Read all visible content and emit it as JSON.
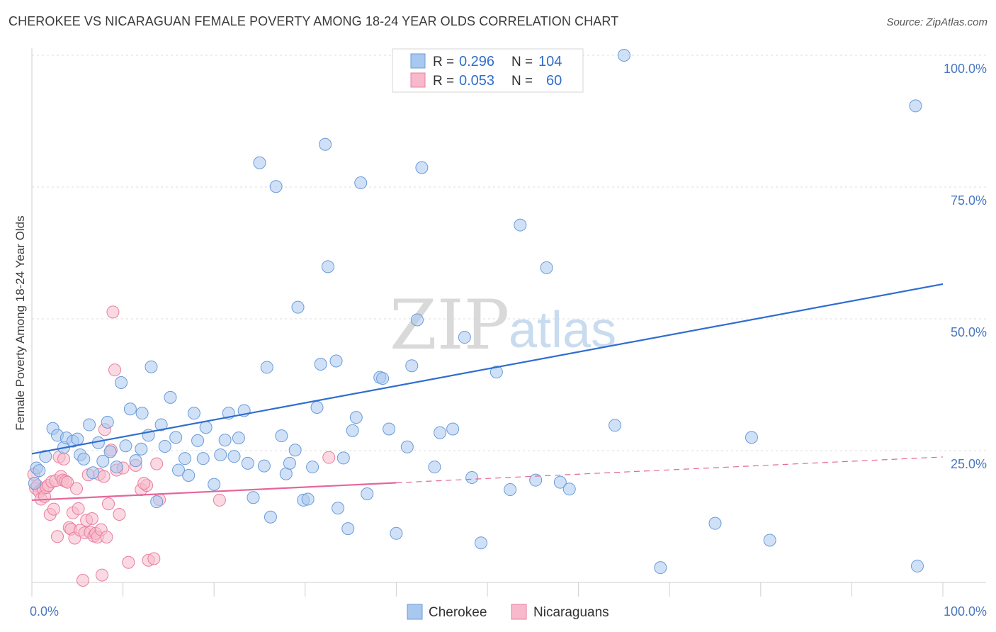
{
  "header": {
    "title": "CHEROKEE VS NICARAGUAN FEMALE POVERTY AMONG 18-24 YEAR OLDS CORRELATION CHART",
    "source": "Source: ZipAtlas.com"
  },
  "watermark": {
    "zip": "ZIP",
    "atlas": "atlas"
  },
  "colors": {
    "cherokee_fill": "#a9c8f0",
    "cherokee_stroke": "#6a9bd8",
    "cherokee_line": "#2f6dd0",
    "nicaraguan_fill": "#f7b9cb",
    "nicaraguan_stroke": "#e87fa0",
    "nicaraguan_line": "#e5659a",
    "tick_text": "#4a78c2"
  },
  "stats": {
    "cherokee": {
      "r_label": "R =",
      "r_value": "0.296",
      "n_label": "N =",
      "n_value": "104"
    },
    "nicaraguan": {
      "r_label": "R =",
      "r_value": "0.053",
      "n_label": "N =",
      "n_value": "60"
    }
  },
  "legend": {
    "items": [
      "Cherokee",
      "Nicaraguans"
    ]
  },
  "chart_data": {
    "type": "scatter",
    "title": "CHEROKEE VS NICARAGUAN FEMALE POVERTY AMONG 18-24 YEAR OLDS CORRELATION CHART",
    "xlabel": "",
    "ylabel": "Female Poverty Among 18-24 Year Olds",
    "xlim": [
      0,
      100
    ],
    "ylim": [
      0,
      100
    ],
    "x_tick_labels": [
      "0.0%",
      "100.0%"
    ],
    "y_tick_values": [
      25,
      50,
      75,
      100
    ],
    "y_tick_labels": [
      "25.0%",
      "50.0%",
      "75.0%",
      "100.0%"
    ],
    "grid": true,
    "legend_position": "bottom-center",
    "series": [
      {
        "name": "Cherokee",
        "r": 0.296,
        "n": 104,
        "trend": {
          "x": [
            0,
            100
          ],
          "y": [
            24.4,
            56.6
          ],
          "style": "solid"
        },
        "points": [
          [
            0.5,
            21.7
          ],
          [
            0.8,
            21.2
          ],
          [
            1.5,
            23.9
          ],
          [
            2.3,
            29.2
          ],
          [
            2.8,
            27.9
          ],
          [
            3.5,
            25.6
          ],
          [
            3.8,
            27.4
          ],
          [
            4.5,
            26.8
          ],
          [
            5.0,
            27.2
          ],
          [
            5.3,
            24.2
          ],
          [
            5.7,
            23.4
          ],
          [
            6.3,
            29.9
          ],
          [
            6.7,
            20.8
          ],
          [
            7.3,
            26.5
          ],
          [
            7.8,
            23.0
          ],
          [
            8.3,
            30.4
          ],
          [
            8.6,
            24.8
          ],
          [
            9.3,
            21.9
          ],
          [
            9.8,
            37.9
          ],
          [
            10.3,
            25.9
          ],
          [
            10.8,
            32.9
          ],
          [
            11.4,
            23.1
          ],
          [
            12.0,
            25.3
          ],
          [
            12.1,
            32.1
          ],
          [
            12.8,
            27.9
          ],
          [
            13.1,
            40.9
          ],
          [
            13.7,
            15.3
          ],
          [
            14.2,
            29.9
          ],
          [
            14.6,
            25.8
          ],
          [
            15.2,
            35.1
          ],
          [
            15.8,
            27.5
          ],
          [
            16.1,
            21.3
          ],
          [
            16.8,
            23.5
          ],
          [
            17.2,
            20.3
          ],
          [
            17.8,
            32.1
          ],
          [
            18.2,
            26.9
          ],
          [
            18.8,
            23.5
          ],
          [
            19.1,
            29.4
          ],
          [
            20.0,
            18.6
          ],
          [
            20.7,
            24.2
          ],
          [
            21.2,
            27.0
          ],
          [
            21.6,
            32.1
          ],
          [
            22.2,
            23.9
          ],
          [
            22.7,
            27.4
          ],
          [
            23.3,
            32.6
          ],
          [
            23.7,
            22.6
          ],
          [
            24.3,
            16.1
          ],
          [
            25.0,
            79.6
          ],
          [
            25.5,
            22.1
          ],
          [
            25.8,
            40.8
          ],
          [
            26.2,
            12.4
          ],
          [
            26.8,
            75.1
          ],
          [
            27.4,
            27.8
          ],
          [
            27.9,
            20.6
          ],
          [
            28.3,
            22.6
          ],
          [
            28.9,
            25.1
          ],
          [
            29.2,
            52.2
          ],
          [
            29.8,
            15.6
          ],
          [
            30.3,
            15.8
          ],
          [
            30.8,
            21.9
          ],
          [
            31.3,
            33.2
          ],
          [
            31.7,
            41.4
          ],
          [
            32.2,
            83.1
          ],
          [
            32.5,
            59.9
          ],
          [
            33.4,
            42.0
          ],
          [
            33.6,
            14.1
          ],
          [
            34.2,
            23.6
          ],
          [
            34.7,
            10.2
          ],
          [
            35.2,
            28.8
          ],
          [
            35.6,
            31.3
          ],
          [
            36.1,
            75.8
          ],
          [
            36.8,
            16.8
          ],
          [
            38.2,
            38.9
          ],
          [
            38.5,
            38.7
          ],
          [
            39.2,
            29.1
          ],
          [
            40.0,
            9.3
          ],
          [
            41.2,
            25.7
          ],
          [
            41.7,
            41.1
          ],
          [
            42.3,
            49.8
          ],
          [
            42.8,
            78.7
          ],
          [
            44.2,
            21.9
          ],
          [
            44.8,
            28.4
          ],
          [
            46.2,
            29.1
          ],
          [
            47.5,
            46.5
          ],
          [
            48.3,
            19.9
          ],
          [
            49.3,
            7.5
          ],
          [
            51.0,
            39.9
          ],
          [
            52.5,
            17.6
          ],
          [
            52.6,
            100.0
          ],
          [
            53.6,
            67.8
          ],
          [
            55.0,
            100.0
          ],
          [
            55.3,
            19.4
          ],
          [
            56.5,
            59.7
          ],
          [
            58.0,
            19.0
          ],
          [
            59.0,
            17.7
          ],
          [
            64.0,
            29.8
          ],
          [
            65.0,
            100.0
          ],
          [
            69.0,
            2.8
          ],
          [
            75.0,
            11.2
          ],
          [
            79.0,
            27.5
          ],
          [
            81.0,
            8.0
          ],
          [
            97.0,
            90.4
          ],
          [
            97.2,
            3.1
          ],
          [
            0.3,
            18.8
          ]
        ]
      },
      {
        "name": "Nicaraguans",
        "r": 0.053,
        "n": 60,
        "trend": {
          "x": [
            0,
            40
          ],
          "y": [
            15.6,
            18.9
          ],
          "style": "solid",
          "extended": {
            "x": [
              40,
              100
            ],
            "y": [
              18.9,
              23.8
            ],
            "style": "dashed"
          }
        },
        "points": [
          [
            0.2,
            20.5
          ],
          [
            0.4,
            17.9
          ],
          [
            0.6,
            18.3
          ],
          [
            0.8,
            17.2
          ],
          [
            1.0,
            15.8
          ],
          [
            1.2,
            17.8
          ],
          [
            1.4,
            16.3
          ],
          [
            1.6,
            18.0
          ],
          [
            1.8,
            18.4
          ],
          [
            2.0,
            12.9
          ],
          [
            2.2,
            19.1
          ],
          [
            2.4,
            13.9
          ],
          [
            2.6,
            19.3
          ],
          [
            2.8,
            8.7
          ],
          [
            3.0,
            23.8
          ],
          [
            3.2,
            20.1
          ],
          [
            3.4,
            19.4
          ],
          [
            3.5,
            23.4
          ],
          [
            3.7,
            19.2
          ],
          [
            3.9,
            19.0
          ],
          [
            4.1,
            10.4
          ],
          [
            4.3,
            10.1
          ],
          [
            4.5,
            13.2
          ],
          [
            4.7,
            8.4
          ],
          [
            4.9,
            17.8
          ],
          [
            5.1,
            14.0
          ],
          [
            5.3,
            9.9
          ],
          [
            5.6,
            0.4
          ],
          [
            5.8,
            9.4
          ],
          [
            6.0,
            11.8
          ],
          [
            6.2,
            20.4
          ],
          [
            6.4,
            9.5
          ],
          [
            6.6,
            12.1
          ],
          [
            6.8,
            8.8
          ],
          [
            7.0,
            9.3
          ],
          [
            7.2,
            8.6
          ],
          [
            7.4,
            20.5
          ],
          [
            7.6,
            10.0
          ],
          [
            7.7,
            1.4
          ],
          [
            7.9,
            20.1
          ],
          [
            8.0,
            29.0
          ],
          [
            8.2,
            8.6
          ],
          [
            8.4,
            14.9
          ],
          [
            8.7,
            25.1
          ],
          [
            8.9,
            51.3
          ],
          [
            9.1,
            40.3
          ],
          [
            9.3,
            21.3
          ],
          [
            9.6,
            12.9
          ],
          [
            10.0,
            21.7
          ],
          [
            10.6,
            3.8
          ],
          [
            11.4,
            22.2
          ],
          [
            12.0,
            17.6
          ],
          [
            12.6,
            18.4
          ],
          [
            12.8,
            4.2
          ],
          [
            13.4,
            4.5
          ],
          [
            13.7,
            22.5
          ],
          [
            14.0,
            15.7
          ],
          [
            20.6,
            15.6
          ],
          [
            32.6,
            23.7
          ],
          [
            12.3,
            18.8
          ]
        ]
      }
    ]
  }
}
